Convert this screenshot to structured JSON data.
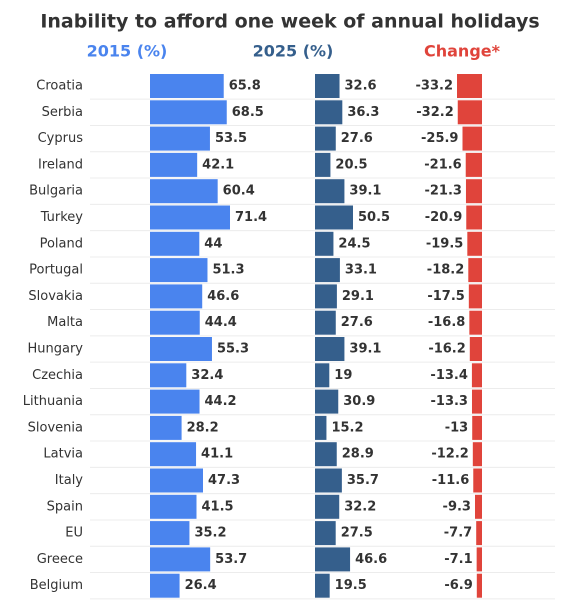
{
  "chart_data": {
    "type": "bar",
    "title": "Inability to afford one week of annual holidays",
    "categories": [
      "Croatia",
      "Serbia",
      "Cyprus",
      "Ireland",
      "Bulgaria",
      "Turkey",
      "Poland",
      "Portugal",
      "Slovakia",
      "Malta",
      "Hungary",
      "Czechia",
      "Lithuania",
      "Slovenia",
      "Latvia",
      "Italy",
      "Spain",
      "EU",
      "Greece",
      "Belgium"
    ],
    "series": [
      {
        "name": "2015 (%)",
        "color": "#4a84ee",
        "values": [
          65.8,
          68.5,
          53.5,
          42.1,
          60.4,
          71.4,
          44,
          51.3,
          46.6,
          44.4,
          55.3,
          32.4,
          44.2,
          28.2,
          41.1,
          47.3,
          41.5,
          35.2,
          53.7,
          26.4
        ]
      },
      {
        "name": "2025 (%)",
        "color": "#355f8c",
        "values": [
          32.6,
          36.3,
          27.6,
          20.5,
          39.1,
          50.5,
          24.5,
          33.1,
          29.1,
          27.6,
          39.1,
          19,
          30.9,
          15.2,
          28.9,
          35.7,
          32.2,
          27.5,
          46.6,
          19.5
        ]
      },
      {
        "name": "Change*",
        "color": "#e0443b",
        "values": [
          -33.2,
          -32.2,
          -25.9,
          -21.6,
          -21.3,
          -20.9,
          -19.5,
          -18.2,
          -17.5,
          -16.8,
          -16.2,
          -13.4,
          -13.3,
          -13,
          -12.2,
          -11.6,
          -9.3,
          -7.7,
          -7.1,
          -6.9
        ]
      }
    ]
  }
}
